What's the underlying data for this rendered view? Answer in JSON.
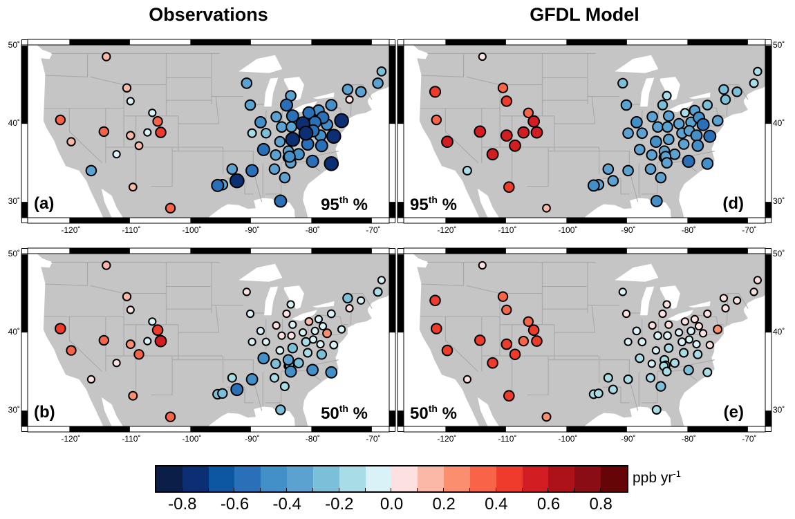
{
  "titles": {
    "left": "Observations",
    "right": "GFDL Model"
  },
  "axes": {
    "lon_ticks": [
      -120,
      -110,
      -100,
      -90,
      -80,
      -70
    ],
    "lon_labels": [
      "-120˚",
      "-110˚",
      "-100˚",
      "-90˚",
      "-80˚",
      "-70˚"
    ],
    "lat_ticks": [
      50,
      40,
      30
    ],
    "lat_labels": [
      "50˚",
      "40˚",
      "30˚"
    ]
  },
  "colors": {
    "land": "#c5c5c5",
    "water": "#ffffff",
    "borders": "#a8a8a8"
  },
  "colorbar": {
    "min": -0.9,
    "max": 0.9,
    "step": 0.1,
    "colors": [
      "#0b1e48",
      "#0b2f72",
      "#0d56a0",
      "#2a70b8",
      "#4390c8",
      "#5ba2d0",
      "#7cbfd8",
      "#a8dce6",
      "#d8f2f8",
      "#fde0e0",
      "#fcb8a6",
      "#fb8e6e",
      "#f76448",
      "#ee3b2c",
      "#d21e22",
      "#ae1219",
      "#8a0c14",
      "#660508"
    ],
    "tick_labels": [
      "-0.8",
      "-0.6",
      "-0.4",
      "-0.2",
      "0.0",
      "0.2",
      "0.4",
      "0.6",
      "0.8"
    ],
    "tick_values": [
      -0.8,
      -0.6,
      -0.4,
      -0.2,
      0.0,
      0.2,
      0.4,
      0.6,
      0.8
    ],
    "units": "ppb yr",
    "units_exp": "-1"
  },
  "stations": [
    {
      "lon": -121.7,
      "lat": 44.1
    },
    {
      "lon": -113.9,
      "lat": 48.6
    },
    {
      "lon": -110.5,
      "lat": 44.6
    },
    {
      "lon": -109.9,
      "lat": 42.9
    },
    {
      "lon": -121.5,
      "lat": 40.5
    },
    {
      "lon": -106.3,
      "lat": 41.4
    },
    {
      "lon": -105.4,
      "lat": 40.3
    },
    {
      "lon": -104.9,
      "lat": 38.9
    },
    {
      "lon": -114.3,
      "lat": 39.0
    },
    {
      "lon": -119.7,
      "lat": 37.7
    },
    {
      "lon": -109.9,
      "lat": 38.5
    },
    {
      "lon": -107.1,
      "lat": 38.9
    },
    {
      "lon": -108.5,
      "lat": 37.2
    },
    {
      "lon": -112.2,
      "lat": 36.1
    },
    {
      "lon": -116.4,
      "lat": 34.0
    },
    {
      "lon": -109.5,
      "lat": 31.9
    },
    {
      "lon": -103.3,
      "lat": 29.2
    },
    {
      "lon": -68.4,
      "lat": 46.7
    },
    {
      "lon": -69.0,
      "lat": 45.2
    },
    {
      "lon": -74.0,
      "lat": 44.4
    },
    {
      "lon": -71.8,
      "lat": 44.1
    },
    {
      "lon": -73.7,
      "lat": 43.1
    },
    {
      "lon": -90.7,
      "lat": 45.2
    },
    {
      "lon": -90.1,
      "lat": 42.4
    },
    {
      "lon": -83.4,
      "lat": 43.6
    },
    {
      "lon": -84.1,
      "lat": 42.4
    },
    {
      "lon": -76.7,
      "lat": 42.4
    },
    {
      "lon": -80.4,
      "lat": 41.4
    },
    {
      "lon": -78.8,
      "lat": 41.7
    },
    {
      "lon": -85.8,
      "lat": 40.9
    },
    {
      "lon": -83.1,
      "lat": 41.0
    },
    {
      "lon": -78.1,
      "lat": 40.8
    },
    {
      "lon": -75.0,
      "lat": 40.4
    },
    {
      "lon": -88.4,
      "lat": 40.2
    },
    {
      "lon": -81.4,
      "lat": 40.0
    },
    {
      "lon": -79.4,
      "lat": 40.2
    },
    {
      "lon": -77.4,
      "lat": 39.9
    },
    {
      "lon": -84.9,
      "lat": 39.6
    },
    {
      "lon": -83.3,
      "lat": 39.6
    },
    {
      "lon": -89.8,
      "lat": 38.8
    },
    {
      "lon": -87.5,
      "lat": 38.8
    },
    {
      "lon": -80.9,
      "lat": 38.8
    },
    {
      "lon": -79.7,
      "lat": 39.1
    },
    {
      "lon": -78.5,
      "lat": 38.5
    },
    {
      "lon": -76.3,
      "lat": 38.4
    },
    {
      "lon": -85.2,
      "lat": 37.7
    },
    {
      "lon": -83.1,
      "lat": 38.0
    },
    {
      "lon": -80.6,
      "lat": 37.4
    },
    {
      "lon": -78.3,
      "lat": 37.2
    },
    {
      "lon": -87.9,
      "lat": 36.7
    },
    {
      "lon": -83.8,
      "lat": 36.5
    },
    {
      "lon": -85.9,
      "lat": 36.0
    },
    {
      "lon": -82.1,
      "lat": 36.1
    },
    {
      "lon": -83.6,
      "lat": 35.8
    },
    {
      "lon": -83.9,
      "lat": 35.7
    },
    {
      "lon": -83.4,
      "lat": 35.0
    },
    {
      "lon": -79.8,
      "lat": 35.2
    },
    {
      "lon": -76.7,
      "lat": 34.9
    },
    {
      "lon": -93.1,
      "lat": 34.2
    },
    {
      "lon": -89.8,
      "lat": 34.0
    },
    {
      "lon": -86.1,
      "lat": 34.2
    },
    {
      "lon": -92.3,
      "lat": 32.7
    },
    {
      "lon": -84.4,
      "lat": 33.1
    },
    {
      "lon": -95.5,
      "lat": 32.1
    },
    {
      "lon": -94.7,
      "lat": 32.2
    },
    {
      "lon": -85.1,
      "lat": 30.1
    }
  ],
  "panels": [
    {
      "letter": "(a)",
      "pct_num": "95",
      "pct_sup": "th",
      "pct_sign": "%",
      "column": "left",
      "row": "top",
      "values": [
        null,
        0.15,
        0.15,
        -0.05,
        0.3,
        -0.05,
        0.3,
        0.4,
        0.3,
        0.15,
        0.15,
        -0.05,
        0.1,
        -0.05,
        -0.4,
        0.1,
        0.3,
        -0.25,
        -0.4,
        -0.4,
        -0.4,
        0.05,
        -0.4,
        -0.4,
        -0.4,
        -0.6,
        -0.5,
        -0.6,
        -0.5,
        -0.4,
        -0.6,
        -0.6,
        -0.8,
        -0.5,
        -0.8,
        -0.6,
        -0.5,
        -0.4,
        -0.4,
        -0.2,
        -0.3,
        -0.8,
        -0.6,
        -0.5,
        -0.8,
        -0.4,
        -0.8,
        -0.6,
        -0.6,
        -0.6,
        -0.4,
        -0.4,
        -0.5,
        -0.5,
        -0.3,
        -0.4,
        -0.6,
        -0.8,
        -0.4,
        -0.6,
        -0.4,
        -0.8,
        -0.4,
        -0.6,
        -0.4,
        -0.6
      ]
    },
    {
      "letter": "(d)",
      "pct_num": "95",
      "pct_sup": "th",
      "pct_sign": "%",
      "column": "right",
      "row": "top",
      "values": [
        0.45,
        0.05,
        0.3,
        0.4,
        0.3,
        0.3,
        0.5,
        0.5,
        0.5,
        0.5,
        0.5,
        0.5,
        0.5,
        0.5,
        -0.2,
        0.4,
        0.1,
        -0.15,
        -0.2,
        -0.3,
        -0.3,
        -0.3,
        -0.3,
        -0.4,
        -0.2,
        -0.3,
        -0.3,
        -0.2,
        -0.4,
        -0.4,
        -0.4,
        -0.5,
        -0.4,
        -0.5,
        -0.4,
        -0.4,
        -0.6,
        -0.4,
        -0.4,
        -0.4,
        -0.4,
        -0.4,
        -0.4,
        -0.5,
        -0.6,
        -0.5,
        -0.4,
        -0.4,
        -0.5,
        -0.4,
        -0.4,
        -0.4,
        -0.4,
        -0.4,
        -0.3,
        -0.4,
        -0.6,
        -0.5,
        -0.4,
        -0.4,
        -0.4,
        -0.4,
        -0.4,
        -0.5,
        -0.4,
        -0.5
      ]
    },
    {
      "letter": "(b)",
      "pct_num": "50",
      "pct_sup": "th",
      "pct_sign": "%",
      "column": "left",
      "row": "bottom",
      "values": [
        null,
        0.15,
        0.15,
        0.05,
        0.4,
        -0.05,
        0.4,
        0.5,
        0.3,
        0.3,
        0.2,
        -0.05,
        0.3,
        0.05,
        0.05,
        0.2,
        0.3,
        -0.05,
        -0.2,
        -0.3,
        -0.05,
        0.05,
        0.05,
        -0.05,
        -0.05,
        0.05,
        -0.1,
        0.1,
        -0.05,
        0.05,
        -0.05,
        -0.05,
        -0.05,
        -0.05,
        -0.05,
        -0.05,
        0.2,
        0.05,
        0.05,
        -0.05,
        -0.05,
        -0.2,
        -0.05,
        -0.05,
        -0.1,
        -0.1,
        -0.3,
        -0.2,
        -0.3,
        -0.5,
        -0.4,
        -0.3,
        -0.3,
        -0.2,
        -0.05,
        -0.5,
        -0.5,
        -0.5,
        -0.2,
        -0.5,
        -0.2,
        -0.6,
        -0.2,
        -0.3,
        -0.3,
        -0.3
      ]
    },
    {
      "letter": "(e)",
      "pct_num": "50",
      "pct_sup": "th",
      "pct_sign": "%",
      "column": "right",
      "row": "bottom",
      "values": [
        0.4,
        0.05,
        0.3,
        0.3,
        0.4,
        0.3,
        0.4,
        0.4,
        0.4,
        0.4,
        0.4,
        0.3,
        0.4,
        0.4,
        0.05,
        0.4,
        0.2,
        0.05,
        0.05,
        0.05,
        0.05,
        0.05,
        -0.05,
        0.05,
        0.05,
        0.05,
        0.05,
        0.05,
        0.05,
        0.05,
        0.05,
        0.05,
        0.2,
        -0.1,
        -0.05,
        -0.1,
        0.05,
        -0.1,
        -0.1,
        -0.05,
        -0.1,
        -0.1,
        -0.05,
        -0.05,
        0.05,
        -0.05,
        -0.2,
        -0.2,
        -0.2,
        -0.2,
        -0.2,
        -0.05,
        -0.2,
        -0.2,
        -0.2,
        -0.2,
        -0.3,
        -0.2,
        -0.2,
        -0.2,
        -0.2,
        -0.2,
        -0.3,
        -0.2,
        -0.2,
        -0.2
      ]
    }
  ]
}
